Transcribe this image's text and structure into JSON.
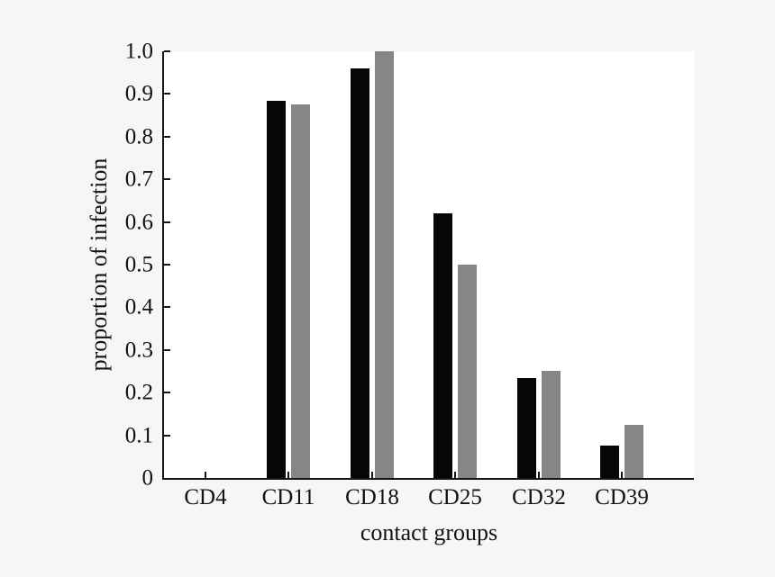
{
  "chart_data": {
    "type": "bar",
    "title": "",
    "xlabel": "contact groups",
    "ylabel": "proportion of infection",
    "categories": [
      "CD4",
      "CD11",
      "CD18",
      "CD25",
      "CD32",
      "CD39"
    ],
    "series": [
      {
        "name": "black bars",
        "color": "#060606",
        "values": [
          0,
          0.885,
          0.96,
          0.62,
          0.235,
          0.075
        ]
      },
      {
        "name": "grey bars",
        "color": "#868686",
        "values": [
          0,
          0.875,
          1.0,
          0.5,
          0.25,
          0.125
        ]
      }
    ],
    "ylim": [
      0,
      1.0
    ],
    "ytick_step": 0.1,
    "ytick_labels": [
      "0",
      "0.1",
      "0.2",
      "0.3",
      "0.4",
      "0.5",
      "0.6",
      "0.7",
      "0.8",
      "0.9",
      "1.0"
    ],
    "grid": false,
    "legend": "none",
    "background": "#f6f6f6",
    "plot_background": "#ffffff",
    "axis_color": "#141414"
  }
}
